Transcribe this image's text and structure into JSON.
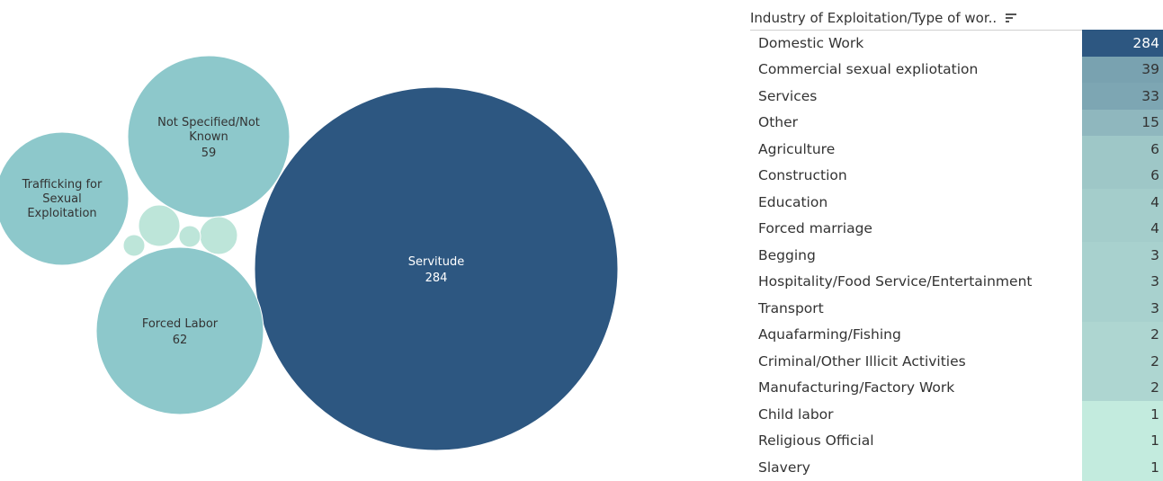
{
  "chart_data": [
    {
      "type": "bubble",
      "bubbles": [
        {
          "label": "Servitude",
          "value": 284,
          "color": "#2d5781",
          "text_color": "#ffffff",
          "show_label": true
        },
        {
          "label": "Forced Labor",
          "value": 62,
          "color": "#8dc8cb",
          "text_color": "#333333",
          "show_label": true
        },
        {
          "label": "Not Specified/Not Known",
          "label_lines": [
            "Not Specified/Not",
            "Known"
          ],
          "value": 59,
          "color": "#8dc8cb",
          "text_color": "#333333",
          "show_label": true
        },
        {
          "label": "Trafficking for Sexual Exploitation",
          "label_lines": [
            "Trafficking for",
            "Sexual",
            "Exploitation"
          ],
          "value": 55,
          "color": "#8dc8cb",
          "text_color": "#333333",
          "show_label": true,
          "show_value": false
        },
        {
          "label": "",
          "value": 4,
          "color": "#bde5d9",
          "show_label": false
        },
        {
          "label": "",
          "value": 4,
          "color": "#bde5d9",
          "show_label": false
        },
        {
          "label": "",
          "value": 1,
          "color": "#bde5d9",
          "show_label": false
        },
        {
          "label": "",
          "value": 1,
          "color": "#bde5d9",
          "show_label": false
        }
      ]
    },
    {
      "type": "table",
      "header": "Industry of Exploitation/Type of wor..",
      "rows": [
        {
          "label": "Domestic Work",
          "value": 284
        },
        {
          "label": "Commercial sexual expliotation",
          "value": 39
        },
        {
          "label": "Services",
          "value": 33
        },
        {
          "label": "Other",
          "value": 15
        },
        {
          "label": "Agriculture",
          "value": 6
        },
        {
          "label": "Construction",
          "value": 6
        },
        {
          "label": "Education",
          "value": 4
        },
        {
          "label": "Forced marriage",
          "value": 4
        },
        {
          "label": "Begging",
          "value": 3
        },
        {
          "label": "Hospitality/Food Service/Entertainment",
          "value": 3
        },
        {
          "label": "Transport",
          "value": 3
        },
        {
          "label": "Aquafarming/Fishing",
          "value": 2
        },
        {
          "label": "Criminal/Other Illicit Activities",
          "value": 2
        },
        {
          "label": "Manufacturing/Factory Work",
          "value": 2
        },
        {
          "label": "Child labor",
          "value": 1
        },
        {
          "label": "Religious Official",
          "value": 1
        },
        {
          "label": "Slavery",
          "value": 1
        }
      ],
      "color_scale": {
        "low": "#c3ebde",
        "high": "#2d5781"
      }
    }
  ],
  "icons": {
    "sort": "sort-descending-icon"
  }
}
